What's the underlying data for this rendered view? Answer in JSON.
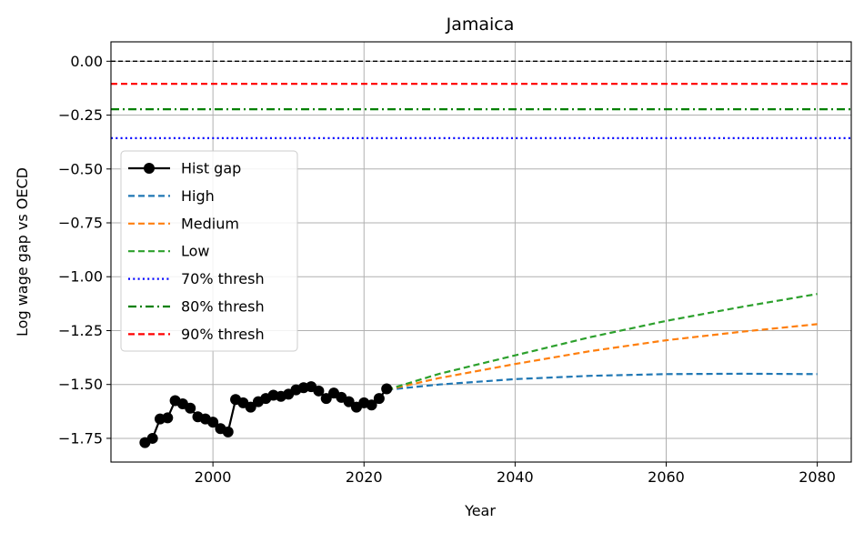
{
  "chart_data": {
    "type": "line",
    "title": "Jamaica",
    "xlabel": "Year",
    "ylabel": "Log wage gap vs OECD",
    "xlim": [
      1986.5,
      2084.5
    ],
    "ylim": [
      -1.86,
      0.09
    ],
    "xticks": [
      2000,
      2020,
      2040,
      2060,
      2080
    ],
    "yticks": [
      0.0,
      -0.25,
      -0.5,
      -0.75,
      -1.0,
      -1.25,
      -1.5,
      -1.75
    ],
    "ytick_labels": [
      "0.00",
      "−0.25",
      "−0.50",
      "−0.75",
      "−1.00",
      "−1.25",
      "−1.50",
      "−1.75"
    ],
    "grid": true,
    "legend_position": "center-left",
    "reference_lines": [
      {
        "name": "zero",
        "y": 0.0,
        "color": "#000000",
        "dash": "dashed"
      },
      {
        "name": "90% thresh",
        "y": -0.105,
        "color": "#ff0000",
        "dash": "dashed"
      },
      {
        "name": "80% thresh",
        "y": -0.223,
        "color": "#008000",
        "dash": "dashdot"
      },
      {
        "name": "70% thresh",
        "y": -0.357,
        "color": "#0000ff",
        "dash": "dotted"
      }
    ],
    "historical": {
      "name": "Hist gap",
      "color": "#000000",
      "x": [
        1991,
        1992,
        1993,
        1994,
        1995,
        1996,
        1997,
        1998,
        1999,
        2000,
        2001,
        2002,
        2003,
        2004,
        2005,
        2006,
        2007,
        2008,
        2009,
        2010,
        2011,
        2012,
        2013,
        2014,
        2015,
        2016,
        2017,
        2018,
        2019,
        2020,
        2021,
        2022,
        2023
      ],
      "y": [
        -1.77,
        -1.75,
        -1.66,
        -1.655,
        -1.575,
        -1.59,
        -1.61,
        -1.65,
        -1.66,
        -1.675,
        -1.705,
        -1.72,
        -1.57,
        -1.585,
        -1.605,
        -1.58,
        -1.565,
        -1.55,
        -1.555,
        -1.545,
        -1.525,
        -1.515,
        -1.51,
        -1.53,
        -1.565,
        -1.54,
        -1.56,
        -1.58,
        -1.605,
        -1.585,
        -1.595,
        -1.565,
        -1.52
      ]
    },
    "series": [
      {
        "name": "High",
        "color": "#1f77b4",
        "dash": "dashed",
        "x": [
          2023,
          2030,
          2040,
          2050,
          2060,
          2070,
          2080
        ],
        "y": [
          -1.525,
          -1.5,
          -1.475,
          -1.46,
          -1.452,
          -1.45,
          -1.452
        ]
      },
      {
        "name": "Medium",
        "color": "#ff7f0e",
        "dash": "dashed",
        "x": [
          2023,
          2030,
          2040,
          2050,
          2060,
          2070,
          2080
        ],
        "y": [
          -1.525,
          -1.47,
          -1.405,
          -1.345,
          -1.295,
          -1.255,
          -1.22
        ]
      },
      {
        "name": "Low",
        "color": "#2ca02c",
        "dash": "dashed",
        "x": [
          2023,
          2030,
          2040,
          2050,
          2060,
          2070,
          2080
        ],
        "y": [
          -1.525,
          -1.45,
          -1.365,
          -1.28,
          -1.205,
          -1.14,
          -1.08
        ]
      }
    ],
    "legend": [
      {
        "label": "Hist gap",
        "color": "#000000",
        "style": "solid-marker"
      },
      {
        "label": "High",
        "color": "#1f77b4",
        "style": "dashed"
      },
      {
        "label": "Medium",
        "color": "#ff7f0e",
        "style": "dashed"
      },
      {
        "label": "Low",
        "color": "#2ca02c",
        "style": "dashed"
      },
      {
        "label": "70% thresh",
        "color": "#0000ff",
        "style": "dotted"
      },
      {
        "label": "80% thresh",
        "color": "#008000",
        "style": "dashdot"
      },
      {
        "label": "90% thresh",
        "color": "#ff0000",
        "style": "dashed"
      }
    ]
  }
}
